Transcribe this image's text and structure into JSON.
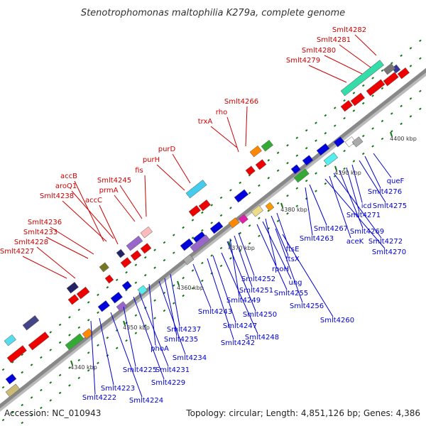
{
  "title": "Stenotrophomonas maltophilia K279a, complete genome",
  "footer": {
    "accession": "Accession: NC_010943",
    "summary": "Topology: circular; Length: 4,851,126 bp; Genes: 4,386"
  },
  "colors": {
    "top_strand_label": "#cc0000",
    "bottom_strand_label": "#0000cc",
    "forward_gene": "#ee0000",
    "reverse_gene": "#0000dd",
    "backbone": "#888888"
  },
  "ticks": [
    "4340 kbp",
    "4350 kbp",
    "4360 kbp",
    "4370 kbp",
    "4380 kbp",
    "4390 kbp",
    "4400 kbp"
  ],
  "top_labels": [
    "Smlt4282",
    "Smlt4281",
    "Smlt4280",
    "Smlt4279",
    "Smlt4266",
    "rho",
    "trxA",
    "purD",
    "purH",
    "fis",
    "Smlt4245",
    "prmA",
    "accB",
    "aroQ1",
    "Smlt4238",
    "accC",
    "Smlt4236",
    "Smlt4233",
    "Smlt4228",
    "Smlt4227"
  ],
  "bottom_labels": [
    "queF",
    "Smlt4276",
    "Smlt4275",
    "icd",
    "Smlt4271",
    "Smlt4269",
    "Smlt4272",
    "aceK",
    "Smlt4270",
    "Smlt4267",
    "Smlt4263",
    "ftsE",
    "ftsX",
    "rpoH",
    "ung",
    "Smlt4255",
    "Smlt4252",
    "Smlt4251",
    "Smlt4249",
    "Smlt4250",
    "Smlt4256",
    "Smlt4260",
    "Smlt4243",
    "Smlt4247",
    "Smlt4248",
    "Smlt4242",
    "Smlt4237",
    "Smlt4235",
    "Smlt4234",
    "phoA",
    "Smlt4231",
    "Smlt4229",
    "Smlt4225",
    "Smlt4223",
    "Smlt4224",
    "Smlt4222"
  ]
}
